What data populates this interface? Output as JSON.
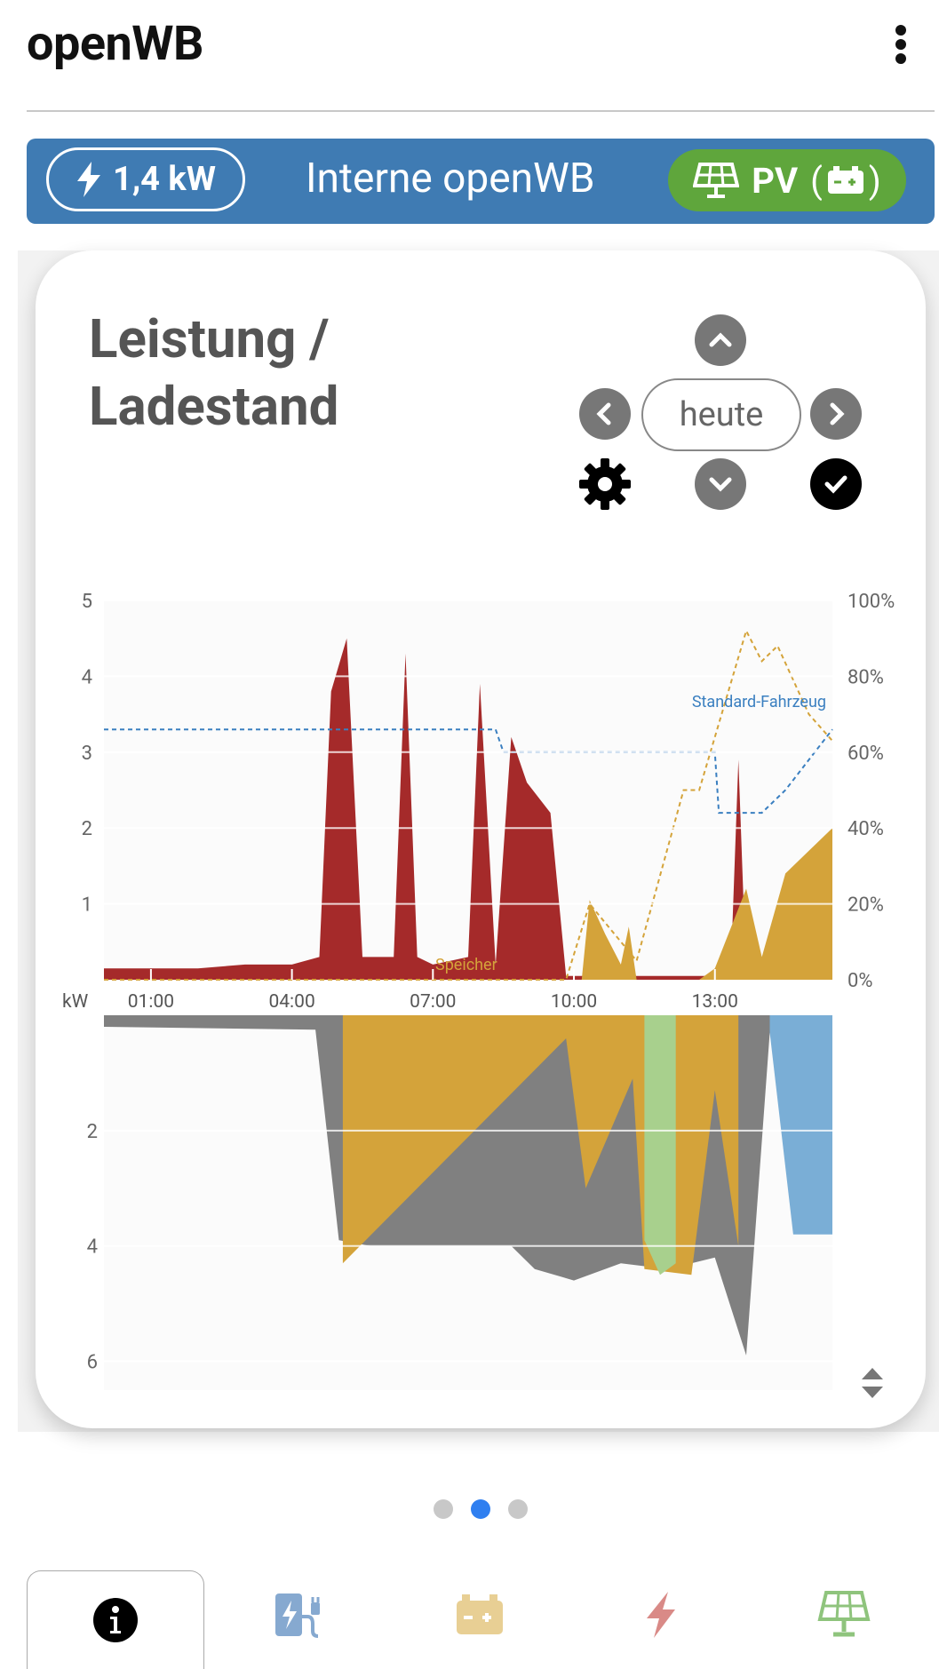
{
  "app": {
    "title": "openWB"
  },
  "status_banner": {
    "power": "1,4 kW",
    "title": "Interne openWB",
    "mode_label": "PV",
    "mode_paren_open": "(",
    "mode_paren_close": ")",
    "color": "#3f7bb3",
    "mode_color": "#5fa63c"
  },
  "card": {
    "title": "Leistung / Ladestand",
    "date_label": "heute"
  },
  "chart_data": {
    "type": "area",
    "upper": {
      "y_left_ticks": [
        "5",
        "4",
        "3",
        "2",
        "1"
      ],
      "y_left_range": [
        0,
        5
      ],
      "y_right_ticks": [
        "100%",
        "80%",
        "60%",
        "40%",
        "20%",
        "0%"
      ],
      "y_right_range": [
        0,
        100
      ],
      "x_label": "kW",
      "x_ticks": [
        "01:00",
        "04:00",
        "07:00",
        "10:00",
        "13:00"
      ],
      "annotations": [
        "Speicher",
        "Standard-Fahrzeug"
      ],
      "series": [
        {
          "color": "#a52a2a",
          "x": [
            "00:00",
            "01:00",
            "02:00",
            "03:00",
            "04:00",
            "04:35",
            "04:50",
            "05:10",
            "05:30",
            "06:10",
            "06:25",
            "06:40",
            "07:00",
            "07:45",
            "08:00",
            "08:20",
            "08:40",
            "09:00",
            "09:30",
            "09:50",
            "13:20",
            "13:30",
            "13:40"
          ],
          "values": [
            0.15,
            0.15,
            0.15,
            0.2,
            0.2,
            0.3,
            3.8,
            4.5,
            0.3,
            0.3,
            4.3,
            0.3,
            0.2,
            0.3,
            3.9,
            0.2,
            3.2,
            2.6,
            2.2,
            0.05,
            0.05,
            2.9,
            0.05
          ]
        },
        {
          "color": "#d4a33a",
          "x": [
            "10:10",
            "10:20",
            "10:40",
            "11:00",
            "11:10",
            "11:20",
            "12:40",
            "13:00",
            "13:40",
            "14:00",
            "14:30",
            "15:30"
          ],
          "values": [
            0,
            1.05,
            0.6,
            0.2,
            0.7,
            0,
            0,
            0.15,
            1.2,
            0.3,
            1.4,
            2.0
          ]
        },
        {
          "color": "#3a7fc0",
          "x": [
            "00:00",
            "08:20",
            "08:30",
            "13:00",
            "13:05",
            "14:00",
            "14:30",
            "15:30"
          ],
          "values": [
            66,
            66,
            60,
            60,
            44,
            44,
            50,
            66
          ]
        },
        {
          "color": "#d4a33a",
          "x": [
            "00:00",
            "09:50",
            "10:20",
            "11:20",
            "12:20",
            "12:40",
            "13:40",
            "14:00",
            "14:20",
            "15:00",
            "15:30"
          ],
          "values": [
            0,
            0,
            20,
            5,
            50,
            50,
            92,
            84,
            88,
            70,
            63
          ]
        }
      ]
    },
    "lower": {
      "y_ticks": [
        "2",
        "4",
        "6"
      ],
      "y_range": [
        0,
        6.5
      ],
      "series": [
        {
          "color": "#808080",
          "x": [
            "00:00",
            "04:30",
            "05:00",
            "05:40",
            "06:20",
            "07:00",
            "07:50",
            "08:40",
            "09:10",
            "10:00",
            "11:00",
            "12:00",
            "13:00",
            "13:40",
            "14:10"
          ],
          "values": [
            0.2,
            0.25,
            3.9,
            4.0,
            4.0,
            4.0,
            4.0,
            4.0,
            4.4,
            4.6,
            4.3,
            4.4,
            4.2,
            5.9,
            0.3
          ]
        },
        {
          "color": "#d4a33a",
          "x": [
            "05:05",
            "09:50",
            "10:15",
            "11:15",
            "11:30",
            "12:30",
            "13:00",
            "13:30"
          ],
          "values": [
            4.3,
            0.4,
            3.0,
            1.1,
            4.4,
            4.5,
            1.3,
            4.0
          ]
        },
        {
          "color": "#a8d08d",
          "x": [
            "11:30",
            "11:50",
            "12:10"
          ],
          "values": [
            3.9,
            4.5,
            4.3
          ]
        },
        {
          "color": "#7aaed6",
          "x": [
            "14:10",
            "14:40",
            "15:30"
          ],
          "values": [
            0.3,
            3.8,
            3.8
          ]
        }
      ]
    }
  },
  "pager": {
    "count": 3,
    "active": 1,
    "active_color": "#2f7ff0"
  },
  "bottom_nav": {
    "tabs": [
      {
        "icon": "info-icon"
      },
      {
        "icon": "charge-point-icon"
      },
      {
        "icon": "battery-icon"
      },
      {
        "icon": "lightning-icon"
      },
      {
        "icon": "solar-panel-icon"
      }
    ]
  }
}
